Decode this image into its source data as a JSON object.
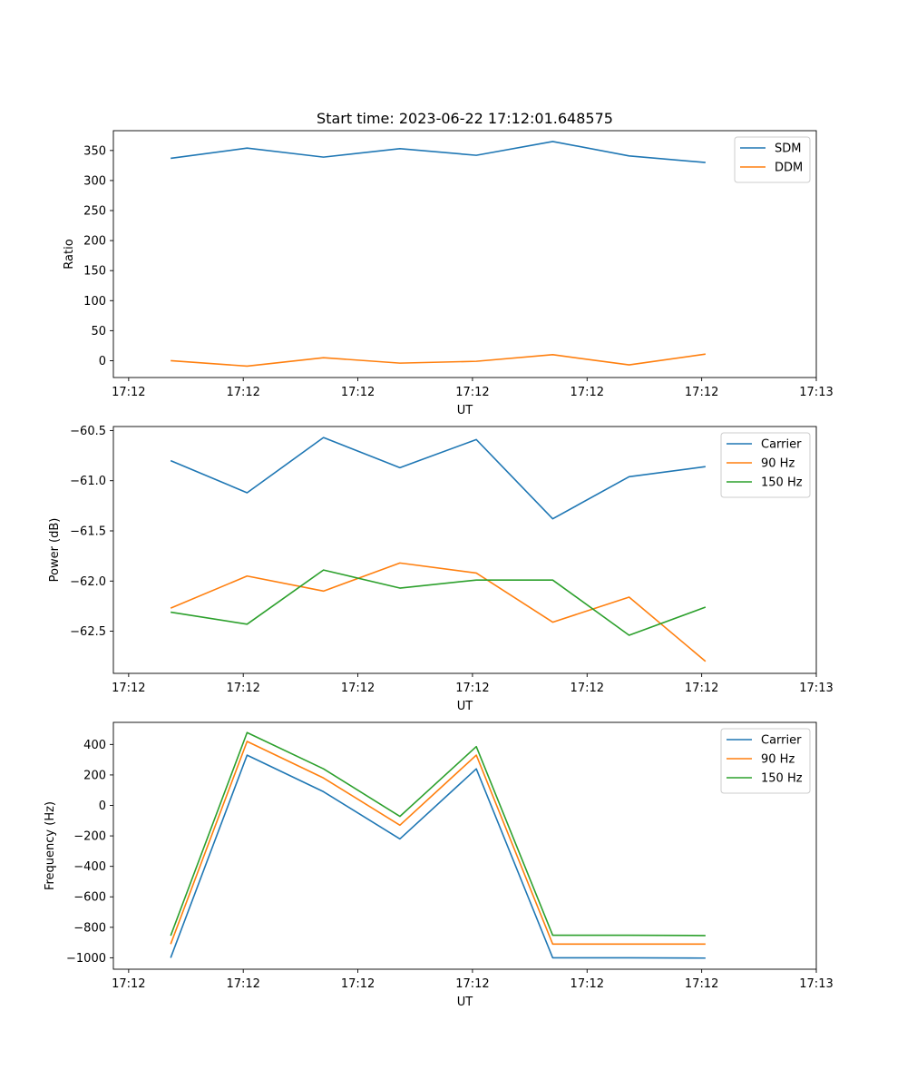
{
  "colors": {
    "series": [
      "#1f77b4",
      "#ff7f0e",
      "#2ca02c"
    ],
    "axes": "#000000",
    "legend_border": "#cccccc",
    "background": "#ffffff"
  },
  "chart_data": [
    {
      "type": "line",
      "title": "Start time: 2023-06-22 17:12:01.648575",
      "xlabel": "UT",
      "ylabel": "Ratio",
      "x_index": [
        0,
        1,
        2,
        3,
        4,
        5,
        6,
        7
      ],
      "xlim": [
        -0.75,
        8.45
      ],
      "x_ticks": [
        -0.55,
        0.95,
        2.45,
        3.95,
        5.45,
        6.95,
        8.45
      ],
      "x_tick_labels": [
        "17:12",
        "17:12",
        "17:12",
        "17:12",
        "17:12",
        "17:12",
        "17:13"
      ],
      "ylim": [
        -28,
        383
      ],
      "y_ticks": [
        0,
        50,
        100,
        150,
        200,
        250,
        300,
        350
      ],
      "y_tick_labels": [
        "0",
        "50",
        "100",
        "150",
        "200",
        "250",
        "300",
        "350"
      ],
      "legend": "top-right",
      "grid": false,
      "series": [
        {
          "name": "SDM",
          "values": [
            337,
            354,
            339,
            353,
            342,
            365,
            341,
            330
          ]
        },
        {
          "name": "DDM",
          "values": [
            0,
            -9,
            5,
            -4,
            -1,
            10,
            -7,
            11
          ]
        }
      ]
    },
    {
      "type": "line",
      "title": "",
      "xlabel": "UT",
      "ylabel": "Power (dB)",
      "x_index": [
        0,
        1,
        2,
        3,
        4,
        5,
        6,
        7
      ],
      "xlim": [
        -0.75,
        8.45
      ],
      "x_ticks": [
        -0.55,
        0.95,
        2.45,
        3.95,
        5.45,
        6.95,
        8.45
      ],
      "x_tick_labels": [
        "17:12",
        "17:12",
        "17:12",
        "17:12",
        "17:12",
        "17:12",
        "17:13"
      ],
      "ylim": [
        -62.92,
        -60.46
      ],
      "y_ticks": [
        -60.5,
        -61.0,
        -61.5,
        -62.0,
        -62.5
      ],
      "y_tick_labels": [
        "−60.5",
        "−61.0",
        "−61.5",
        "−62.0",
        "−62.5"
      ],
      "legend": "top-right",
      "grid": false,
      "series": [
        {
          "name": "Carrier",
          "values": [
            -60.8,
            -61.12,
            -60.57,
            -60.87,
            -60.59,
            -61.38,
            -60.96,
            -60.86
          ]
        },
        {
          "name": "90 Hz",
          "values": [
            -62.27,
            -61.95,
            -62.1,
            -61.82,
            -61.92,
            -62.41,
            -62.16,
            -62.8
          ]
        },
        {
          "name": "150 Hz",
          "values": [
            -62.31,
            -62.43,
            -61.89,
            -62.07,
            -61.99,
            -61.99,
            -62.54,
            -62.26
          ]
        }
      ]
    },
    {
      "type": "line",
      "title": "",
      "xlabel": "UT",
      "ylabel": "Frequency (Hz)",
      "x_index": [
        0,
        1,
        2,
        3,
        4,
        5,
        6,
        7
      ],
      "xlim": [
        -0.75,
        8.45
      ],
      "x_ticks": [
        -0.55,
        0.95,
        2.45,
        3.95,
        5.45,
        6.95,
        8.45
      ],
      "x_tick_labels": [
        "17:12",
        "17:12",
        "17:12",
        "17:12",
        "17:12",
        "17:12",
        "17:13"
      ],
      "ylim": [
        -1075,
        545
      ],
      "y_ticks": [
        400,
        200,
        0,
        -200,
        -400,
        -600,
        -800,
        -1000
      ],
      "y_tick_labels": [
        "400",
        "200",
        "0",
        "−200",
        "−400",
        "−600",
        "−800",
        "−1000"
      ],
      "legend": "top-right",
      "grid": false,
      "series": [
        {
          "name": "Carrier",
          "values": [
            -1000,
            330,
            90,
            -220,
            240,
            -1000,
            -1000,
            -1002
          ]
        },
        {
          "name": "90 Hz",
          "values": [
            -910,
            420,
            180,
            -130,
            330,
            -910,
            -910,
            -910
          ]
        },
        {
          "name": "150 Hz",
          "values": [
            -855,
            478,
            240,
            -72,
            386,
            -852,
            -852,
            -854
          ]
        }
      ]
    }
  ]
}
